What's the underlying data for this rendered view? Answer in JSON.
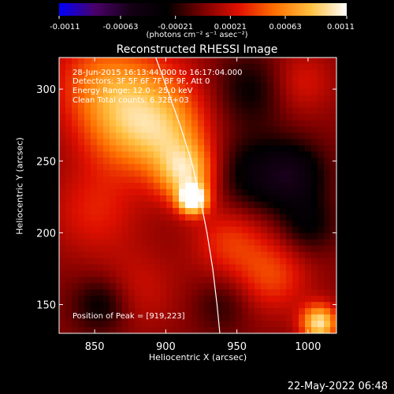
{
  "chart_data": {
    "type": "heatmap",
    "title": "Reconstructed RHESSI Image",
    "xlabel": "Heliocentric X (arcsec)",
    "ylabel": "Heliocentric Y (arcsec)",
    "xlim": [
      825,
      1020
    ],
    "ylim": [
      130,
      322
    ],
    "x_ticks": [
      850,
      900,
      950,
      1000
    ],
    "y_ticks": [
      150,
      200,
      250,
      300
    ],
    "colorbar": {
      "ticks": [
        "-0.0011",
        "-0.00063",
        "-0.00021",
        "0.00021",
        "0.00063",
        "0.0011"
      ],
      "tick_values": [
        -0.0011,
        -0.00063,
        -0.00021,
        0.00021,
        0.00063,
        0.0011
      ],
      "min": -0.0011,
      "max": 0.0011,
      "unit_label": "(photons cm⁻² s⁻¹ asec⁻²)",
      "colors": [
        "#0000ff",
        "#4a0068",
        "#140014",
        "#000000",
        "#7a0000",
        "#e01000",
        "#ff7000",
        "#ffc040",
        "#ffffff"
      ]
    },
    "annotations": {
      "time_range": "28-Jun-2015 16:13:44.000 to 16:17:04.000",
      "detectors": "Detectors: 3F 5F 6F 7F 8F 9F, Att 0",
      "energy": "Energy Range: 12.0 - 25.0 keV",
      "clean": "Clean     Total counts: 6.32E+03",
      "peak": "Position of Peak = [919,223]"
    },
    "peak_position": [
      919,
      223
    ],
    "limb_curve": [
      [
        893,
        322
      ],
      [
        901,
        300
      ],
      [
        910,
        275
      ],
      [
        918,
        250
      ],
      [
        924,
        225
      ],
      [
        929,
        200
      ],
      [
        933,
        175
      ],
      [
        936,
        150
      ],
      [
        938,
        130
      ]
    ],
    "emission_sources": [
      {
        "x": 919,
        "y": 223,
        "intensity": 0.0011,
        "spread": 7
      },
      {
        "x": 915,
        "y": 240,
        "intensity": 0.0007,
        "spread": 14
      },
      {
        "x": 905,
        "y": 262,
        "intensity": 0.00045,
        "spread": 20
      },
      {
        "x": 893,
        "y": 290,
        "intensity": 0.00042,
        "spread": 24
      },
      {
        "x": 855,
        "y": 305,
        "intensity": 0.00048,
        "spread": 24
      },
      {
        "x": 870,
        "y": 270,
        "intensity": 0.0004,
        "spread": 22
      },
      {
        "x": 945,
        "y": 195,
        "intensity": 0.00035,
        "spread": 18
      },
      {
        "x": 975,
        "y": 170,
        "intensity": 0.00038,
        "spread": 18
      },
      {
        "x": 1008,
        "y": 137,
        "intensity": 0.00095,
        "spread": 9
      },
      {
        "x": 850,
        "y": 215,
        "intensity": 0.00028,
        "spread": 22
      },
      {
        "x": 880,
        "y": 160,
        "intensity": 0.0002,
        "spread": 20
      },
      {
        "x": 995,
        "y": 305,
        "intensity": 0.00025,
        "spread": 16
      },
      {
        "x": 960,
        "y": 240,
        "intensity": -0.00035,
        "spread": 20
      },
      {
        "x": 990,
        "y": 240,
        "intensity": -0.00045,
        "spread": 16
      },
      {
        "x": 1000,
        "y": 205,
        "intensity": -0.0003,
        "spread": 14
      },
      {
        "x": 960,
        "y": 300,
        "intensity": -0.0003,
        "spread": 18
      },
      {
        "x": 855,
        "y": 150,
        "intensity": -0.00035,
        "spread": 14
      },
      {
        "x": 940,
        "y": 150,
        "intensity": -0.0002,
        "spread": 14
      }
    ]
  },
  "footer": {
    "timestamp": "22-May-2022 06:48"
  }
}
